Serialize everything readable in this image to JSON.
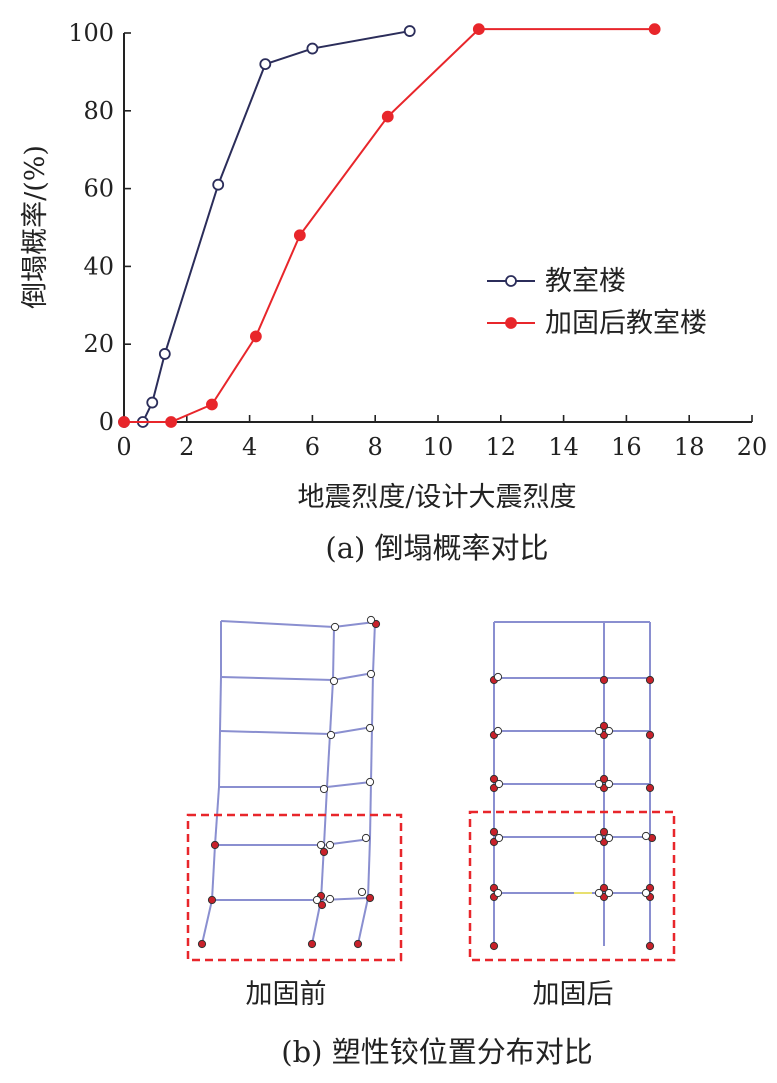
{
  "chart_data": {
    "type": "line",
    "xlabel": "地震烈度/设计大震烈度",
    "ylabel": "倒塌概率/(%)",
    "xlim": [
      0,
      20
    ],
    "ylim": [
      0,
      100
    ],
    "xticks": [
      0,
      2,
      4,
      6,
      8,
      10,
      12,
      14,
      16,
      18,
      20
    ],
    "yticks": [
      0,
      20,
      40,
      60,
      80,
      100
    ],
    "grid": false,
    "legend_position": "right-middle",
    "series": [
      {
        "name": "教室楼",
        "color": "#2b2d5a",
        "marker": "open-circle",
        "x": [
          0,
          0.6,
          0.9,
          1.3,
          3.0,
          4.5,
          6.0,
          9.1
        ],
        "y": [
          0,
          0,
          5,
          17.5,
          61,
          92,
          96,
          100.5
        ]
      },
      {
        "name": "加固后教室楼",
        "color": "#e8262b",
        "marker": "filled-circle",
        "x": [
          0,
          1.5,
          2.8,
          4.2,
          5.6,
          8.4,
          11.3,
          16.9
        ],
        "y": [
          0,
          0,
          4.5,
          22,
          48,
          78.5,
          101,
          101
        ]
      }
    ]
  },
  "captions": {
    "a": "(a) 倒塌概率对比",
    "b": "(b) 塑性铰位置分布对比"
  },
  "frames": {
    "before": {
      "label": "加固前"
    },
    "after": {
      "label": "加固后"
    }
  },
  "colors": {
    "frame_line": "#8a8fd0",
    "hinge_fill": "#c8212a",
    "hinge_open": "#ffffff",
    "dashed_box": "#e8262b",
    "axis": "#222222"
  }
}
